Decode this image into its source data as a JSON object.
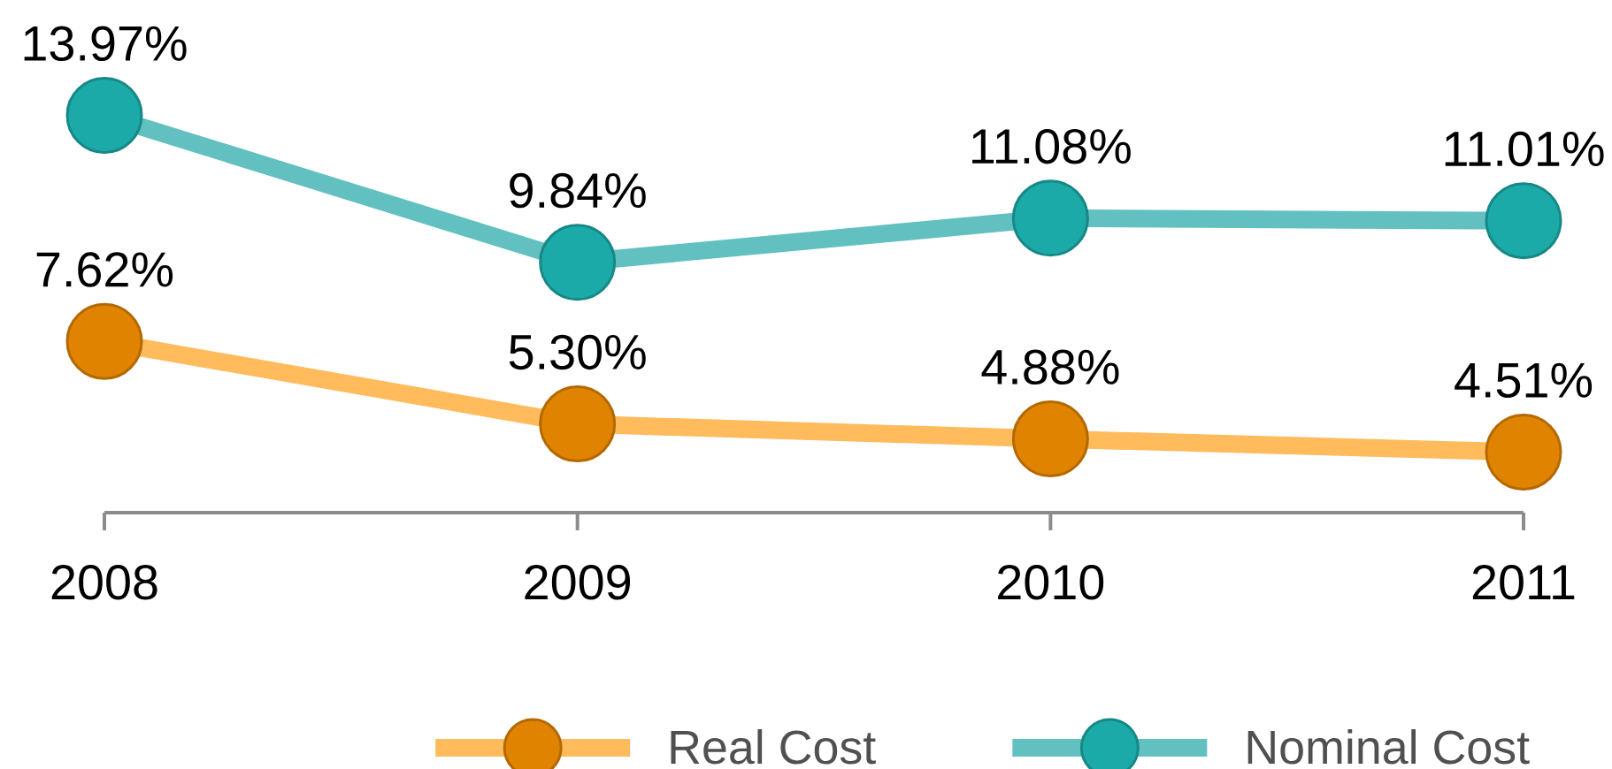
{
  "chart_data": {
    "type": "line",
    "categories": [
      "2008",
      "2009",
      "2010",
      "2011"
    ],
    "series": [
      {
        "name": "Real Cost",
        "color": "#ffbb5c",
        "values": [
          7.62,
          5.3,
          4.88,
          4.51
        ],
        "value_labels": [
          "7.62%",
          "5.30%",
          "4.88%",
          "4.51%"
        ]
      },
      {
        "name": "Nominal Cost",
        "color": "#62c1c0",
        "values": [
          13.97,
          9.84,
          11.08,
          11.01
        ],
        "value_labels": [
          "13.97%",
          "9.84%",
          "11.08%",
          "11.01%"
        ]
      }
    ],
    "tick_labels": "x",
    "legend": "bottom",
    "marker": "circle",
    "line_style": "solid"
  }
}
